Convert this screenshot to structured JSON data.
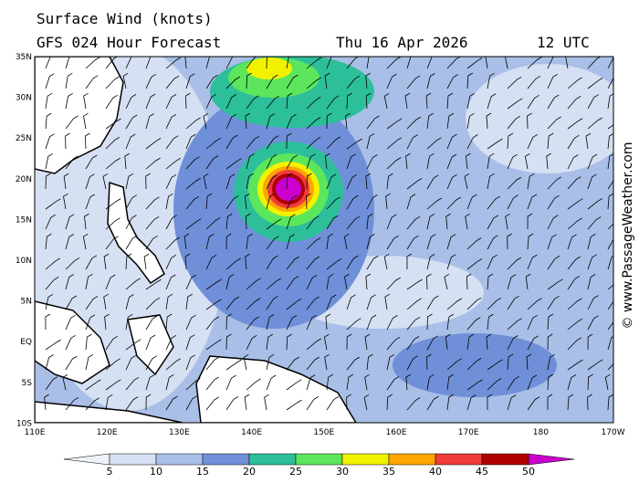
{
  "header": {
    "title": "Surface Wind (knots)",
    "subtitle": "GFS 024 Hour Forecast",
    "date": "Thu 16 Apr 2026",
    "time": "12 UTC"
  },
  "map": {
    "lat_labels": [
      "35N",
      "30N",
      "25N",
      "20N",
      "15N",
      "10N",
      "5N",
      "EQ",
      "5S",
      "10S"
    ],
    "lon_labels": [
      "110E",
      "120E",
      "130E",
      "140E",
      "150E",
      "160E",
      "170E",
      "180",
      "170W"
    ]
  },
  "legend": {
    "levels": [
      5,
      10,
      15,
      20,
      25,
      30,
      35,
      40,
      45,
      50
    ],
    "colors": [
      "#eef2fa",
      "#d6e0f3",
      "#a9bfe7",
      "#6f90d8",
      "#2dbf9a",
      "#5ce65c",
      "#f2f200",
      "#ffa500",
      "#f03c3c",
      "#b00000",
      "#cc00cc"
    ]
  },
  "credit": "© www.PassageWeather.com"
}
